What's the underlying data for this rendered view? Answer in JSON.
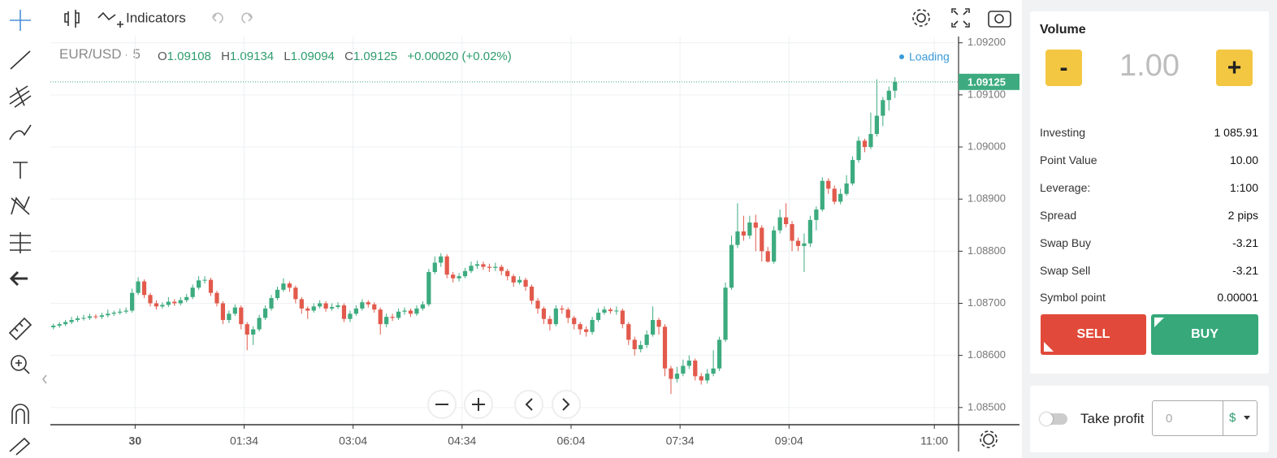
{
  "toolbar": {
    "indicators": "Indicators"
  },
  "chart_data": {
    "type": "candlestick",
    "symbol": "EUR/USD",
    "separator": "·",
    "interval": "5",
    "ohlc_labels": [
      "O",
      "H",
      "L",
      "C"
    ],
    "change": "+0.00020 (+0.02%)",
    "status": "Loading",
    "up_color": "#3dab7f",
    "down_color": "#e25a4c",
    "grid": true,
    "xlim": [
      0,
      150
    ],
    "xticks": [
      {
        "value": 14,
        "label": "30"
      },
      {
        "value": 32,
        "label": "01:34"
      },
      {
        "value": 50,
        "label": "03:04"
      },
      {
        "value": 68,
        "label": "04:34"
      },
      {
        "value": 86,
        "label": "06:04"
      },
      {
        "value": 104,
        "label": "07:34"
      },
      {
        "value": 122,
        "label": "09:04"
      },
      {
        "value": 146,
        "label": "11:00"
      }
    ],
    "ylim": [
      1.08467,
      1.09212
    ],
    "yticks": [
      {
        "value": 1.085,
        "label": "1.08500"
      },
      {
        "value": 1.086,
        "label": "1.08600"
      },
      {
        "value": 1.087,
        "label": "1.08700"
      },
      {
        "value": 1.088,
        "label": "1.08800"
      },
      {
        "value": 1.089,
        "label": "1.08900"
      },
      {
        "value": 1.09,
        "label": "1.09000"
      },
      {
        "value": 1.091,
        "label": "1.09100"
      },
      {
        "value": 1.092,
        "label": "1.09200"
      }
    ],
    "candles": [
      [
        1.08654,
        1.08661,
        1.0865,
        1.08657
      ],
      [
        1.08657,
        1.08664,
        1.08653,
        1.0866
      ],
      [
        1.0866,
        1.08668,
        1.08656,
        1.08664
      ],
      [
        1.08664,
        1.08674,
        1.0866,
        1.08668
      ],
      [
        1.08668,
        1.08676,
        1.08664,
        1.08671
      ],
      [
        1.08671,
        1.08678,
        1.08667,
        1.08672
      ],
      [
        1.08672,
        1.0868,
        1.08668,
        1.08675
      ],
      [
        1.08675,
        1.08679,
        1.0867,
        1.08674
      ],
      [
        1.08674,
        1.08682,
        1.0867,
        1.08677
      ],
      [
        1.08677,
        1.08688,
        1.08673,
        1.0868
      ],
      [
        1.0868,
        1.08686,
        1.08676,
        1.08682
      ],
      [
        1.08682,
        1.0869,
        1.08678,
        1.08684
      ],
      [
        1.08684,
        1.08692,
        1.0868,
        1.08686
      ],
      [
        1.08686,
        1.08728,
        1.08682,
        1.0872
      ],
      [
        1.0872,
        1.0875,
        1.08716,
        1.08742
      ],
      [
        1.08742,
        1.08746,
        1.0871,
        1.08716
      ],
      [
        1.08716,
        1.0872,
        1.08694,
        1.087
      ],
      [
        1.087,
        1.08706,
        1.08688,
        1.08694
      ],
      [
        1.08694,
        1.08702,
        1.0869,
        1.08697
      ],
      [
        1.08697,
        1.08712,
        1.08693,
        1.08703
      ],
      [
        1.08703,
        1.08708,
        1.08695,
        1.087
      ],
      [
        1.087,
        1.08712,
        1.08696,
        1.08706
      ],
      [
        1.08706,
        1.08718,
        1.08702,
        1.08712
      ],
      [
        1.08712,
        1.08736,
        1.08708,
        1.0873
      ],
      [
        1.0873,
        1.08752,
        1.08726,
        1.08744
      ],
      [
        1.08744,
        1.08752,
        1.08738,
        1.08745
      ],
      [
        1.08745,
        1.08749,
        1.08714,
        1.0872
      ],
      [
        1.0872,
        1.08724,
        1.08694,
        1.087
      ],
      [
        1.087,
        1.08704,
        1.0866,
        1.08668
      ],
      [
        1.08668,
        1.08686,
        1.08662,
        1.0868
      ],
      [
        1.0868,
        1.08698,
        1.08676,
        1.08692
      ],
      [
        1.08692,
        1.08696,
        1.0865,
        1.0866
      ],
      [
        1.0866,
        1.08664,
        1.0861,
        1.0864
      ],
      [
        1.0864,
        1.08656,
        1.0862,
        1.0865
      ],
      [
        1.0865,
        1.08678,
        1.08646,
        1.08672
      ],
      [
        1.08672,
        1.08696,
        1.08668,
        1.0869
      ],
      [
        1.0869,
        1.08716,
        1.08686,
        1.0871
      ],
      [
        1.0871,
        1.08732,
        1.08706,
        1.08726
      ],
      [
        1.08726,
        1.08748,
        1.08722,
        1.08738
      ],
      [
        1.08738,
        1.08742,
        1.08722,
        1.0873
      ],
      [
        1.0873,
        1.08734,
        1.087,
        1.08708
      ],
      [
        1.08708,
        1.08712,
        1.0868,
        1.0869
      ],
      [
        1.0869,
        1.08694,
        1.0867,
        1.08686
      ],
      [
        1.08686,
        1.087,
        1.08682,
        1.08694
      ],
      [
        1.08694,
        1.08706,
        1.0869,
        1.087
      ],
      [
        1.087,
        1.08704,
        1.08684,
        1.0869
      ],
      [
        1.0869,
        1.087,
        1.08686,
        1.08693
      ],
      [
        1.08693,
        1.08702,
        1.08689,
        1.08696
      ],
      [
        1.08696,
        1.087,
        1.08664,
        1.0867
      ],
      [
        1.0867,
        1.08686,
        1.08664,
        1.0868
      ],
      [
        1.0868,
        1.08696,
        1.08676,
        1.0869
      ],
      [
        1.0869,
        1.08708,
        1.08686,
        1.08702
      ],
      [
        1.08702,
        1.08706,
        1.08692,
        1.08698
      ],
      [
        1.08698,
        1.08702,
        1.08682,
        1.08688
      ],
      [
        1.08688,
        1.08692,
        1.0864,
        1.0866
      ],
      [
        1.0866,
        1.0868,
        1.08654,
        1.08674
      ],
      [
        1.08674,
        1.0868,
        1.08666,
        1.08672
      ],
      [
        1.08672,
        1.0869,
        1.08668,
        1.08684
      ],
      [
        1.08684,
        1.08692,
        1.08678,
        1.08686
      ],
      [
        1.08686,
        1.0869,
        1.08674,
        1.0868
      ],
      [
        1.0868,
        1.08696,
        1.08676,
        1.0869
      ],
      [
        1.0869,
        1.08704,
        1.08686,
        1.08698
      ],
      [
        1.08698,
        1.08766,
        1.08694,
        1.0876
      ],
      [
        1.0876,
        1.0879,
        1.08756,
        1.08778
      ],
      [
        1.08778,
        1.08796,
        1.0877,
        1.0879
      ],
      [
        1.0879,
        1.08794,
        1.08748,
        1.08755
      ],
      [
        1.08755,
        1.0876,
        1.0874,
        1.08748
      ],
      [
        1.08748,
        1.08758,
        1.08742,
        1.08752
      ],
      [
        1.08752,
        1.08768,
        1.08748,
        1.08762
      ],
      [
        1.08762,
        1.0878,
        1.08758,
        1.08772
      ],
      [
        1.08772,
        1.08782,
        1.08766,
        1.08775
      ],
      [
        1.08775,
        1.0878,
        1.08764,
        1.0877
      ],
      [
        1.0877,
        1.08776,
        1.0876,
        1.08768
      ],
      [
        1.08768,
        1.08778,
        1.08762,
        1.0877
      ],
      [
        1.0877,
        1.08774,
        1.08754,
        1.08762
      ],
      [
        1.08762,
        1.08766,
        1.08744,
        1.08752
      ],
      [
        1.08752,
        1.08756,
        1.08732,
        1.0874
      ],
      [
        1.0874,
        1.08752,
        1.08736,
        1.08745
      ],
      [
        1.08745,
        1.08749,
        1.08724,
        1.08732
      ],
      [
        1.08732,
        1.08736,
        1.08698,
        1.08705
      ],
      [
        1.08705,
        1.0871,
        1.0868,
        1.0869
      ],
      [
        1.0869,
        1.08694,
        1.0866,
        1.0867
      ],
      [
        1.0867,
        1.08676,
        1.08648,
        1.0866
      ],
      [
        1.0866,
        1.08696,
        1.08656,
        1.0869
      ],
      [
        1.0869,
        1.08696,
        1.0868,
        1.08688
      ],
      [
        1.08688,
        1.08692,
        1.08662,
        1.08672
      ],
      [
        1.08672,
        1.08676,
        1.0865,
        1.0866
      ],
      [
        1.0866,
        1.08664,
        1.0864,
        1.0865
      ],
      [
        1.0865,
        1.08656,
        1.08636,
        1.08645
      ],
      [
        1.08645,
        1.08674,
        1.0864,
        1.08668
      ],
      [
        1.08668,
        1.0869,
        1.08664,
        1.08682
      ],
      [
        1.08682,
        1.08694,
        1.08678,
        1.08688
      ],
      [
        1.08688,
        1.08692,
        1.0868,
        1.08685
      ],
      [
        1.08685,
        1.08694,
        1.08678,
        1.08686
      ],
      [
        1.08686,
        1.0869,
        1.08652,
        1.0866
      ],
      [
        1.0866,
        1.08664,
        1.0862,
        1.0863
      ],
      [
        1.0863,
        1.08636,
        1.086,
        1.08612
      ],
      [
        1.08612,
        1.08628,
        1.08606,
        1.0862
      ],
      [
        1.0862,
        1.08648,
        1.08614,
        1.0864
      ],
      [
        1.0864,
        1.08694,
        1.08636,
        1.08668
      ],
      [
        1.08668,
        1.08672,
        1.0864,
        1.08655
      ],
      [
        1.08655,
        1.0866,
        1.0856,
        1.08575
      ],
      [
        1.08575,
        1.0858,
        1.08526,
        1.08555
      ],
      [
        1.08555,
        1.08578,
        1.08548,
        1.08565
      ],
      [
        1.08565,
        1.08592,
        1.0856,
        1.0858
      ],
      [
        1.0858,
        1.086,
        1.08574,
        1.0859
      ],
      [
        1.0859,
        1.08594,
        1.08552,
        1.0856
      ],
      [
        1.0856,
        1.08566,
        1.08544,
        1.08552
      ],
      [
        1.08552,
        1.08574,
        1.08546,
        1.08565
      ],
      [
        1.08565,
        1.0861,
        1.0856,
        1.08575
      ],
      [
        1.08575,
        1.08636,
        1.0857,
        1.0863
      ],
      [
        1.0863,
        1.0874,
        1.08626,
        1.0873
      ],
      [
        1.0873,
        1.0883,
        1.08726,
        1.08812
      ],
      [
        1.08812,
        1.08892,
        1.08806,
        1.08838
      ],
      [
        1.08838,
        1.08868,
        1.0882,
        1.0883
      ],
      [
        1.0883,
        1.08868,
        1.08824,
        1.08855
      ],
      [
        1.08855,
        1.0887,
        1.088,
        1.08845
      ],
      [
        1.08845,
        1.0885,
        1.0878,
        1.088
      ],
      [
        1.088,
        1.08808,
        1.08778,
        1.0878
      ],
      [
        1.0878,
        1.08848,
        1.08776,
        1.0884
      ],
      [
        1.0884,
        1.0888,
        1.08834,
        1.08865
      ],
      [
        1.08865,
        1.08892,
        1.08846,
        1.08852
      ],
      [
        1.08852,
        1.08858,
        1.088,
        1.0882
      ],
      [
        1.0882,
        1.08826,
        1.088,
        1.0881
      ],
      [
        1.0881,
        1.08834,
        1.0876,
        1.08815
      ],
      [
        1.08815,
        1.08868,
        1.08808,
        1.0886
      ],
      [
        1.0886,
        1.08886,
        1.0884,
        1.0888
      ],
      [
        1.0888,
        1.08942,
        1.08876,
        1.08935
      ],
      [
        1.08935,
        1.0894,
        1.0891,
        1.0892
      ],
      [
        1.0892,
        1.08926,
        1.0889,
        1.08895
      ],
      [
        1.08895,
        1.0892,
        1.0889,
        1.0891
      ],
      [
        1.0891,
        1.08946,
        1.08906,
        1.0893
      ],
      [
        1.0893,
        1.08982,
        1.08926,
        1.08975
      ],
      [
        1.08975,
        1.0902,
        1.0897,
        1.09012
      ],
      [
        1.09012,
        1.09016,
        1.0899,
        1.09
      ],
      [
        1.09,
        1.09066,
        1.08996,
        1.09025
      ],
      [
        1.09025,
        1.0913,
        1.0902,
        1.0906
      ],
      [
        1.0906,
        1.09096,
        1.0904,
        1.0909
      ],
      [
        1.0909,
        1.09116,
        1.0907,
        1.09108
      ],
      [
        1.09108,
        1.09134,
        1.09094,
        1.09125
      ]
    ]
  },
  "panel": {
    "volume_title": "Volume",
    "minus": "-",
    "volume": "1.00",
    "plus": "+",
    "rows": [
      {
        "label": "Investing",
        "value": "1 085.91"
      },
      {
        "label": "Point Value",
        "value": "10.00"
      },
      {
        "label": "Leverage:",
        "value": "1:100"
      },
      {
        "label": "Spread",
        "value": "2 pips"
      },
      {
        "label": "Swap Buy",
        "value": "-3.21"
      },
      {
        "label": "Swap Sell",
        "value": "-3.21"
      },
      {
        "label": "Symbol point",
        "value": "0.00001"
      }
    ],
    "sell": "SELL",
    "buy": "BUY",
    "take_profit": "Take profit",
    "tp_value": "0",
    "tp_currency": "$"
  }
}
